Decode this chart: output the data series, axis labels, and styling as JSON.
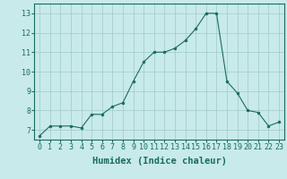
{
  "x": [
    0,
    1,
    2,
    3,
    4,
    5,
    6,
    7,
    8,
    9,
    10,
    11,
    12,
    13,
    14,
    15,
    16,
    17,
    18,
    19,
    20,
    21,
    22,
    23
  ],
  "y": [
    6.7,
    7.2,
    7.2,
    7.2,
    7.1,
    7.8,
    7.8,
    8.2,
    8.4,
    9.5,
    10.5,
    11.0,
    11.0,
    11.2,
    11.6,
    12.2,
    13.0,
    13.0,
    9.5,
    8.9,
    8.0,
    7.9,
    7.2,
    7.4
  ],
  "line_color": "#1a6b5e",
  "marker_color": "#1a6b5e",
  "bg_color": "#c8eaea",
  "grid_color": "#a0c8c8",
  "xlabel": "Humidex (Indice chaleur)",
  "xlim": [
    -0.5,
    23.5
  ],
  "ylim": [
    6.5,
    13.5
  ],
  "yticks": [
    7,
    8,
    9,
    10,
    11,
    12,
    13
  ],
  "xticks": [
    0,
    1,
    2,
    3,
    4,
    5,
    6,
    7,
    8,
    9,
    10,
    11,
    12,
    13,
    14,
    15,
    16,
    17,
    18,
    19,
    20,
    21,
    22,
    23
  ],
  "font_size": 6.0,
  "xlabel_font_size": 7.5
}
